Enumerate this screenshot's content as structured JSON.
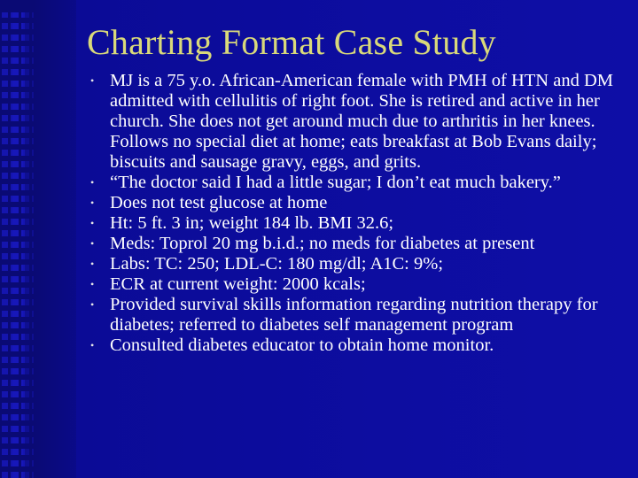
{
  "slide": {
    "title": "Charting Format Case Study",
    "colors": {
      "background": "#0d0da0",
      "title": "#d9d97a",
      "text": "#ffffff"
    },
    "bullet_icon": "bullet-dot-icon",
    "bullets": [
      "MJ is a 75 y.o. African-American female with PMH of HTN and DM admitted with cellulitis of right foot. She is retired and active in her church. She does not get around much due to arthritis in her knees. Follows no special diet at home; eats breakfast at Bob Evans daily; biscuits and sausage gravy, eggs, and grits.",
      "“The doctor said I had a little sugar; I don’t eat much bakery.”",
      "Does not test glucose at home",
      "Ht: 5 ft. 3 in; weight 184 lb. BMI 32.6;",
      "Meds: Toprol 20 mg b.i.d.; no meds for diabetes at present",
      "Labs: TC: 250; LDL-C: 180 mg/dl; A1C: 9%;",
      "ECR at current weight: 2000 kcals;",
      "Provided survival skills information regarding nutrition therapy for diabetes; referred to diabetes self management program",
      "Consulted diabetes educator to obtain home monitor."
    ]
  }
}
